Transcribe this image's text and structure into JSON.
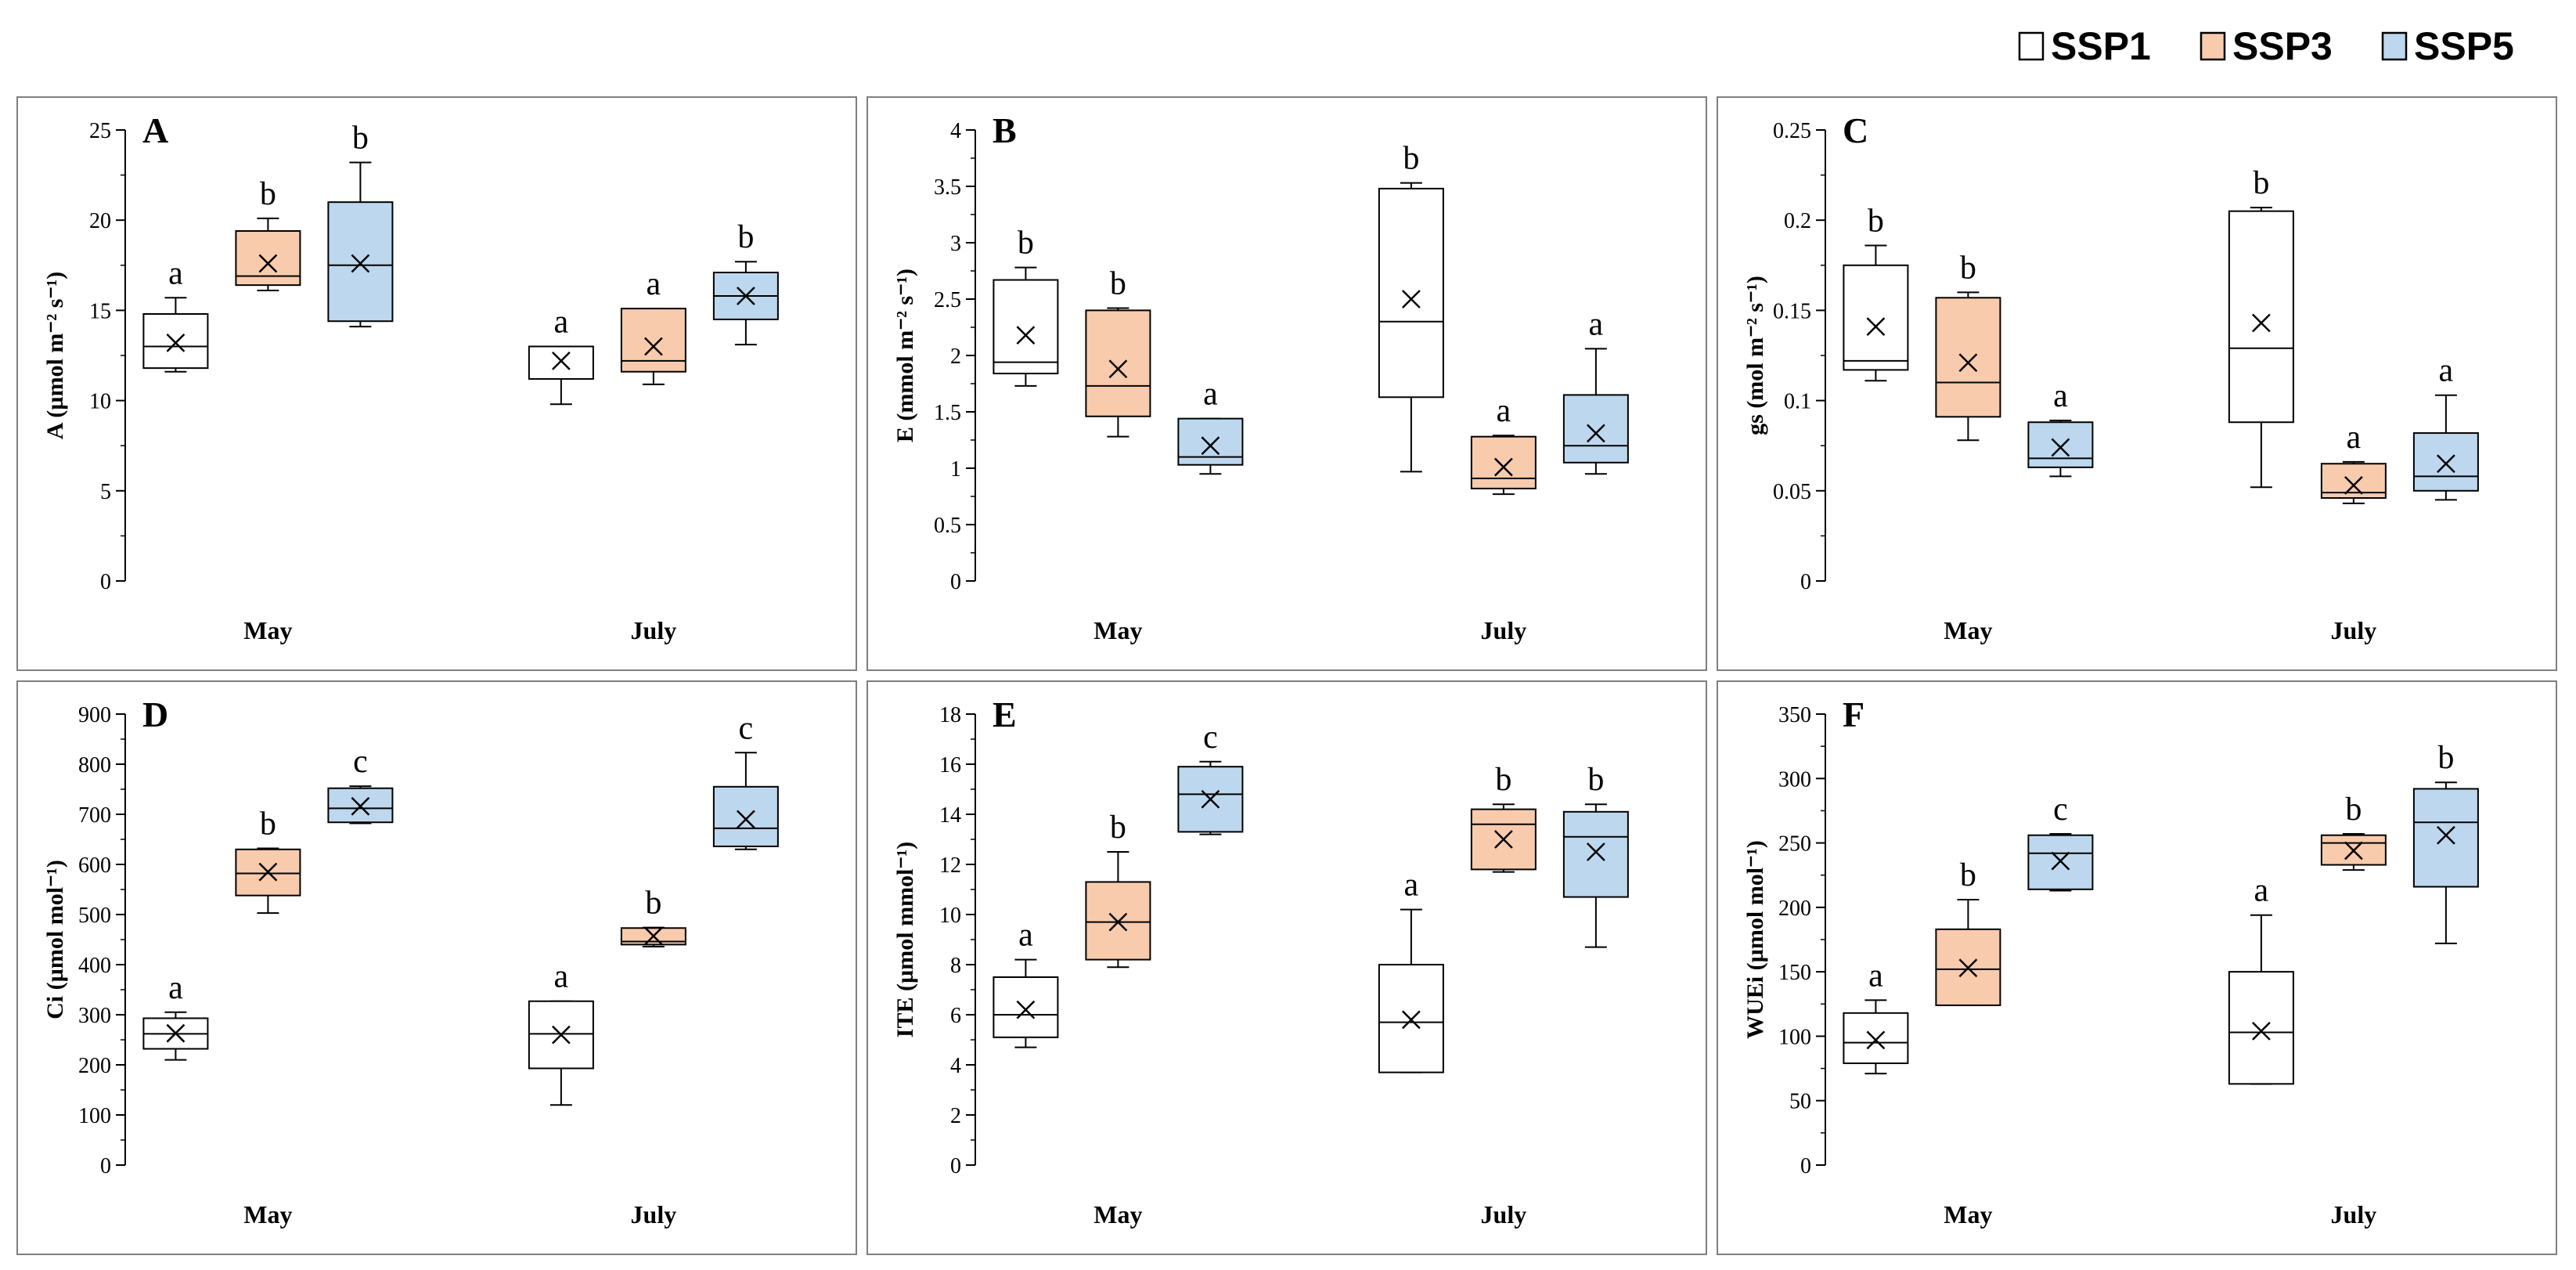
{
  "legend": {
    "items": [
      {
        "label": "SSP1",
        "color": "#ffffff"
      },
      {
        "label": "SSP3",
        "color": "#f8cbad"
      },
      {
        "label": "SSP5",
        "color": "#bdd7ee"
      }
    ]
  },
  "chart_data": [
    {
      "type": "box",
      "title": "A",
      "ylabel": "A (µmol m⁻² s⁻¹)",
      "categories": [
        "May",
        "July"
      ],
      "ylim": [
        0,
        25
      ],
      "yticks": [
        "0",
        "5",
        "10",
        "15",
        "20",
        "25"
      ],
      "series": [
        {
          "name": "SSP1",
          "boxes": [
            {
              "min": 11.6,
              "q1": 11.8,
              "median": 13,
              "q3": 14.8,
              "max": 15.7,
              "mean": 13.2,
              "letter": "a"
            },
            {
              "min": 9.8,
              "q1": 11.2,
              "median": 13,
              "q3": 13,
              "max": 13,
              "mean": 12.2,
              "letter": "a"
            }
          ]
        },
        {
          "name": "SSP3",
          "boxes": [
            {
              "min": 16.1,
              "q1": 16.4,
              "median": 16.9,
              "q3": 19.4,
              "max": 20.1,
              "mean": 17.6,
              "letter": "b"
            },
            {
              "min": 10.9,
              "q1": 11.6,
              "median": 12.2,
              "q3": 15.1,
              "max": 15.1,
              "mean": 13,
              "letter": "a"
            }
          ]
        },
        {
          "name": "SSP5",
          "boxes": [
            {
              "min": 14.1,
              "q1": 14.4,
              "median": 17.5,
              "q3": 21,
              "max": 23.2,
              "mean": 17.6,
              "letter": "b"
            },
            {
              "min": 13.1,
              "q1": 14.5,
              "median": 15.8,
              "q3": 17.1,
              "max": 17.7,
              "mean": 15.8,
              "letter": "b"
            }
          ]
        }
      ]
    },
    {
      "type": "box",
      "title": "B",
      "ylabel": "E (mmol m⁻² s⁻¹)",
      "categories": [
        "May",
        "July"
      ],
      "ylim": [
        0,
        4
      ],
      "yticks": [
        "0",
        "0.5",
        "1",
        "1.5",
        "2",
        "2.5",
        "3",
        "3.5",
        "4"
      ],
      "series": [
        {
          "name": "SSP1",
          "boxes": [
            {
              "min": 1.73,
              "q1": 1.84,
              "median": 1.94,
              "q3": 2.67,
              "max": 2.78,
              "mean": 2.18,
              "letter": "b"
            },
            {
              "min": 0.97,
              "q1": 1.63,
              "median": 2.3,
              "q3": 3.48,
              "max": 3.53,
              "mean": 2.5,
              "letter": "b"
            }
          ]
        },
        {
          "name": "SSP3",
          "boxes": [
            {
              "min": 1.28,
              "q1": 1.46,
              "median": 1.73,
              "q3": 2.4,
              "max": 2.42,
              "mean": 1.88,
              "letter": "b"
            },
            {
              "min": 0.77,
              "q1": 0.82,
              "median": 0.91,
              "q3": 1.28,
              "max": 1.29,
              "mean": 1.01,
              "letter": "a"
            }
          ]
        },
        {
          "name": "SSP5",
          "boxes": [
            {
              "min": 0.95,
              "q1": 1.03,
              "median": 1.1,
              "q3": 1.44,
              "max": 1.44,
              "mean": 1.2,
              "letter": "a"
            },
            {
              "min": 0.95,
              "q1": 1.05,
              "median": 1.2,
              "q3": 1.65,
              "max": 2.06,
              "mean": 1.31,
              "letter": "a"
            }
          ]
        }
      ]
    },
    {
      "type": "box",
      "title": "C",
      "ylabel": "gs (mol m⁻² s⁻¹)",
      "categories": [
        "May",
        "July"
      ],
      "ylim": [
        0,
        0.25
      ],
      "yticks": [
        "0",
        "0.05",
        "0.1",
        "0.15",
        "0.2",
        "0.25"
      ],
      "series": [
        {
          "name": "SSP1",
          "boxes": [
            {
              "min": 0.111,
              "q1": 0.117,
              "median": 0.122,
              "q3": 0.175,
              "max": 0.186,
              "mean": 0.141,
              "letter": "b"
            },
            {
              "min": 0.052,
              "q1": 0.088,
              "median": 0.129,
              "q3": 0.205,
              "max": 0.207,
              "mean": 0.143,
              "letter": "b"
            }
          ]
        },
        {
          "name": "SSP3",
          "boxes": [
            {
              "min": 0.078,
              "q1": 0.091,
              "median": 0.11,
              "q3": 0.157,
              "max": 0.16,
              "mean": 0.121,
              "letter": "b"
            },
            {
              "min": 0.043,
              "q1": 0.046,
              "median": 0.049,
              "q3": 0.065,
              "max": 0.066,
              "mean": 0.053,
              "letter": "a"
            }
          ]
        },
        {
          "name": "SSP5",
          "boxes": [
            {
              "min": 0.058,
              "q1": 0.063,
              "median": 0.068,
              "q3": 0.088,
              "max": 0.089,
              "mean": 0.074,
              "letter": "a"
            },
            {
              "min": 0.045,
              "q1": 0.05,
              "median": 0.058,
              "q3": 0.082,
              "max": 0.103,
              "mean": 0.065,
              "letter": "a"
            }
          ]
        }
      ]
    },
    {
      "type": "box",
      "title": "D",
      "ylabel": "Ci (µmol mol⁻¹)",
      "categories": [
        "May",
        "July"
      ],
      "ylim": [
        0,
        900
      ],
      "yticks": [
        "0",
        "100",
        "200",
        "300",
        "400",
        "500",
        "600",
        "700",
        "800",
        "900"
      ],
      "series": [
        {
          "name": "SSP1",
          "boxes": [
            {
              "min": 210,
              "q1": 232,
              "median": 262,
              "q3": 293,
              "max": 305,
              "mean": 263,
              "letter": "a"
            },
            {
              "min": 120,
              "q1": 193,
              "median": 262,
              "q3": 327,
              "max": 327,
              "mean": 260,
              "letter": "a"
            }
          ]
        },
        {
          "name": "SSP3",
          "boxes": [
            {
              "min": 503,
              "q1": 538,
              "median": 582,
              "q3": 630,
              "max": 632,
              "mean": 585,
              "letter": "b"
            },
            {
              "min": 436,
              "q1": 440,
              "median": 446,
              "q3": 473,
              "max": 474,
              "mean": 457,
              "letter": "b"
            }
          ]
        },
        {
          "name": "SSP5",
          "boxes": [
            {
              "min": 682,
              "q1": 684,
              "median": 712,
              "q3": 752,
              "max": 756,
              "mean": 716,
              "letter": "c"
            },
            {
              "min": 630,
              "q1": 636,
              "median": 672,
              "q3": 755,
              "max": 823,
              "mean": 690,
              "letter": "c"
            }
          ]
        }
      ]
    },
    {
      "type": "box",
      "title": "E",
      "ylabel": "ITE (µmol mmol⁻¹)",
      "categories": [
        "May",
        "July"
      ],
      "ylim": [
        0,
        18
      ],
      "yticks": [
        "0",
        "2",
        "4",
        "6",
        "8",
        "10",
        "12",
        "14",
        "16",
        "18"
      ],
      "series": [
        {
          "name": "SSP1",
          "boxes": [
            {
              "min": 4.7,
              "q1": 5.1,
              "median": 6,
              "q3": 7.5,
              "max": 8.2,
              "mean": 6.2,
              "letter": "a"
            },
            {
              "min": 3.7,
              "q1": 3.7,
              "median": 5.7,
              "q3": 8,
              "max": 10.2,
              "mean": 5.8,
              "letter": "a"
            }
          ]
        },
        {
          "name": "SSP3",
          "boxes": [
            {
              "min": 7.9,
              "q1": 8.2,
              "median": 9.7,
              "q3": 11.3,
              "max": 12.5,
              "mean": 9.7,
              "letter": "b"
            },
            {
              "min": 11.7,
              "q1": 11.8,
              "median": 13.6,
              "q3": 14.2,
              "max": 14.4,
              "mean": 13,
              "letter": "b"
            }
          ]
        },
        {
          "name": "SSP5",
          "boxes": [
            {
              "min": 13.2,
              "q1": 13.3,
              "median": 14.8,
              "q3": 15.9,
              "max": 16.1,
              "mean": 14.6,
              "letter": "c"
            },
            {
              "min": 8.7,
              "q1": 10.7,
              "median": 13.1,
              "q3": 14.1,
              "max": 14.4,
              "mean": 12.5,
              "letter": "b"
            }
          ]
        }
      ]
    },
    {
      "type": "box",
      "title": "F",
      "ylabel": "WUEi (µmol mol⁻¹)",
      "categories": [
        "May",
        "July"
      ],
      "ylim": [
        0,
        350
      ],
      "yticks": [
        "0",
        "50",
        "100",
        "150",
        "200",
        "250",
        "300",
        "350"
      ],
      "series": [
        {
          "name": "SSP1",
          "boxes": [
            {
              "min": 71,
              "q1": 79,
              "median": 95,
              "q3": 118,
              "max": 128,
              "mean": 97,
              "letter": "a"
            },
            {
              "min": 63,
              "q1": 63,
              "median": 103,
              "q3": 150,
              "max": 194,
              "mean": 104,
              "letter": "a"
            }
          ]
        },
        {
          "name": "SSP3",
          "boxes": [
            {
              "min": 124,
              "q1": 124,
              "median": 152,
              "q3": 183,
              "max": 206,
              "mean": 153,
              "letter": "b"
            },
            {
              "min": 229,
              "q1": 233,
              "median": 250,
              "q3": 256,
              "max": 257,
              "mean": 244,
              "letter": "b"
            }
          ]
        },
        {
          "name": "SSP5",
          "boxes": [
            {
              "min": 213,
              "q1": 214,
              "median": 242,
              "q3": 256,
              "max": 257,
              "mean": 236,
              "letter": "c"
            },
            {
              "min": 172,
              "q1": 216,
              "median": 266,
              "q3": 292,
              "max": 297,
              "mean": 256,
              "letter": "b"
            }
          ]
        }
      ]
    }
  ]
}
